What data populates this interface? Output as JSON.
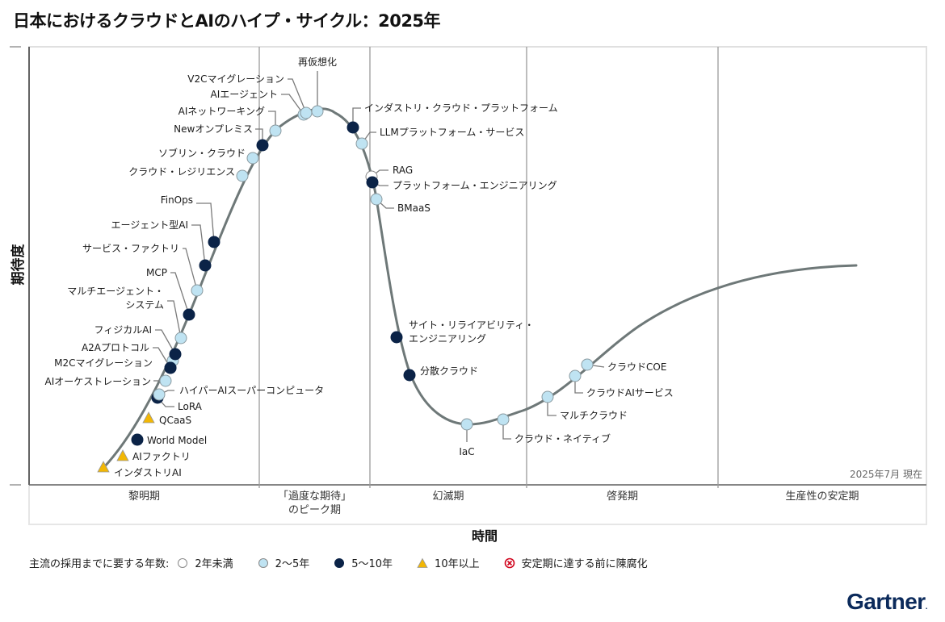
{
  "title": "日本におけるクラウドとAIのハイプ・サイクル：2025年",
  "chart_data": {
    "type": "hype-cycle",
    "title": "日本におけるクラウドとAIのハイプ・サイクル：2025年",
    "xlabel": "時間",
    "ylabel": "期待度",
    "as_of": "2025年7月 現在",
    "phases": [
      {
        "name": "黎明期",
        "lines": [
          "黎明期"
        ]
      },
      {
        "name": "「過度な期待」のピーク期",
        "lines": [
          "「過度な期待」",
          "のピーク期"
        ]
      },
      {
        "name": "幻滅期",
        "lines": [
          "幻滅期"
        ]
      },
      {
        "name": "啓発期",
        "lines": [
          "啓発期"
        ]
      },
      {
        "name": "生産性の安定期",
        "lines": [
          "生産性の安定期"
        ]
      }
    ],
    "legend": {
      "title": "主流の採用までに要する年数:",
      "items": [
        {
          "key": "lt2",
          "label": "2年未満",
          "color": "#ffffff"
        },
        {
          "key": "2to5",
          "label": "2〜5年",
          "color": "#bfe3f2"
        },
        {
          "key": "5to10",
          "label": "5〜10年",
          "color": "#0b2347"
        },
        {
          "key": "gt10",
          "label": "10年以上",
          "color": "#f2b705"
        },
        {
          "key": "obsolete",
          "label": "安定期に達する前に陳腐化",
          "color": "#d0021b"
        }
      ]
    },
    "technologies": [
      {
        "name": "インダストリAI",
        "phase": "黎明期",
        "position": 0.02,
        "years": "gt10"
      },
      {
        "name": "AIファクトリ",
        "phase": "黎明期",
        "position": 0.05,
        "years": "gt10"
      },
      {
        "name": "World Model",
        "phase": "黎明期",
        "position": 0.09,
        "years": "5to10"
      },
      {
        "name": "QCaaS",
        "phase": "黎明期",
        "position": 0.13,
        "years": "gt10"
      },
      {
        "name": "LoRA",
        "phase": "黎明期",
        "position": 0.155,
        "years": "5to10"
      },
      {
        "name": "ハイパーAIスーパーコンピュータ",
        "phase": "黎明期",
        "position": 0.16,
        "years": "2to5"
      },
      {
        "name": "AIオーケストレーション",
        "phase": "黎明期",
        "position": 0.185,
        "years": "2to5"
      },
      {
        "name": "M2Cマイグレーション",
        "phase": "黎明期",
        "position": 0.2,
        "years": "5to10"
      },
      {
        "name": "A2Aプロトコル",
        "phase": "黎明期",
        "position": 0.215,
        "years": "5to10"
      },
      {
        "name": "フィジカルAI",
        "phase": "黎明期",
        "position": 0.23,
        "years": "5to10"
      },
      {
        "name": "マルチエージェント・システム",
        "phase": "黎明期",
        "position": 0.25,
        "years": "2to5"
      },
      {
        "name": "MCP",
        "phase": "黎明期",
        "position": 0.27,
        "years": "5to10"
      },
      {
        "name": "サービス・ファクトリ",
        "phase": "黎明期",
        "position": 0.29,
        "years": "2to5"
      },
      {
        "name": "エージェント型AI",
        "phase": "黎明期",
        "position": 0.31,
        "years": "5to10"
      },
      {
        "name": "FinOps",
        "phase": "黎明期",
        "position": 0.33,
        "years": "5to10"
      },
      {
        "name": "クラウド・レジリエンス",
        "phase": "黎明期",
        "position": 0.37,
        "years": "2to5"
      },
      {
        "name": "ソブリン・クラウド",
        "phase": "黎明期",
        "position": 0.4,
        "years": "2to5"
      },
      {
        "name": "Newオンプレミス",
        "phase": "「過度な期待」のピーク期",
        "position": 0.42,
        "years": "5to10"
      },
      {
        "name": "AIネットワーキング",
        "phase": "「過度な期待」のピーク期",
        "position": 0.45,
        "years": "2to5"
      },
      {
        "name": "AIエージェント",
        "phase": "「過度な期待」のピーク期",
        "position": 0.5,
        "years": "2to5"
      },
      {
        "name": "V2Cマイグレーション",
        "phase": "「過度な期待」のピーク期",
        "position": 0.51,
        "years": "2to5"
      },
      {
        "name": "再仮想化",
        "phase": "「過度な期待」のピーク期",
        "position": 0.53,
        "years": "2to5"
      },
      {
        "name": "インダストリ・クラウド・プラットフォーム",
        "phase": "「過度な期待」のピーク期",
        "position": 0.6,
        "years": "5to10"
      },
      {
        "name": "LLMプラットフォーム・サービス",
        "phase": "幻滅期",
        "position": 0.62,
        "years": "2to5"
      },
      {
        "name": "RAG",
        "phase": "幻滅期",
        "position": 0.65,
        "years": "lt2"
      },
      {
        "name": "プラットフォーム・エンジニアリング",
        "phase": "幻滅期",
        "position": 0.655,
        "years": "5to10"
      },
      {
        "name": "BMaaS",
        "phase": "幻滅期",
        "position": 0.67,
        "years": "2to5"
      },
      {
        "name": "サイト・リライアビリティ・エンジニアリング",
        "phase": "幻滅期",
        "position": 0.72,
        "years": "5to10"
      },
      {
        "name": "分散クラウド",
        "phase": "幻滅期",
        "position": 0.75,
        "years": "5to10"
      },
      {
        "name": "IaC",
        "phase": "幻滅期",
        "position": 0.85,
        "years": "2to5"
      },
      {
        "name": "クラウド・ネイティブ",
        "phase": "幻滅期",
        "position": 0.9,
        "years": "2to5"
      },
      {
        "name": "マルチクラウド",
        "phase": "啓発期",
        "position": 0.3,
        "years": "2to5"
      },
      {
        "name": "クラウドAIサービス",
        "phase": "啓発期",
        "position": 0.45,
        "years": "2to5"
      },
      {
        "name": "クラウドCOE",
        "phase": "啓発期",
        "position": 0.5,
        "years": "2to5"
      }
    ]
  },
  "footer": {
    "brand": "Gartner",
    "brand_dot": "."
  }
}
